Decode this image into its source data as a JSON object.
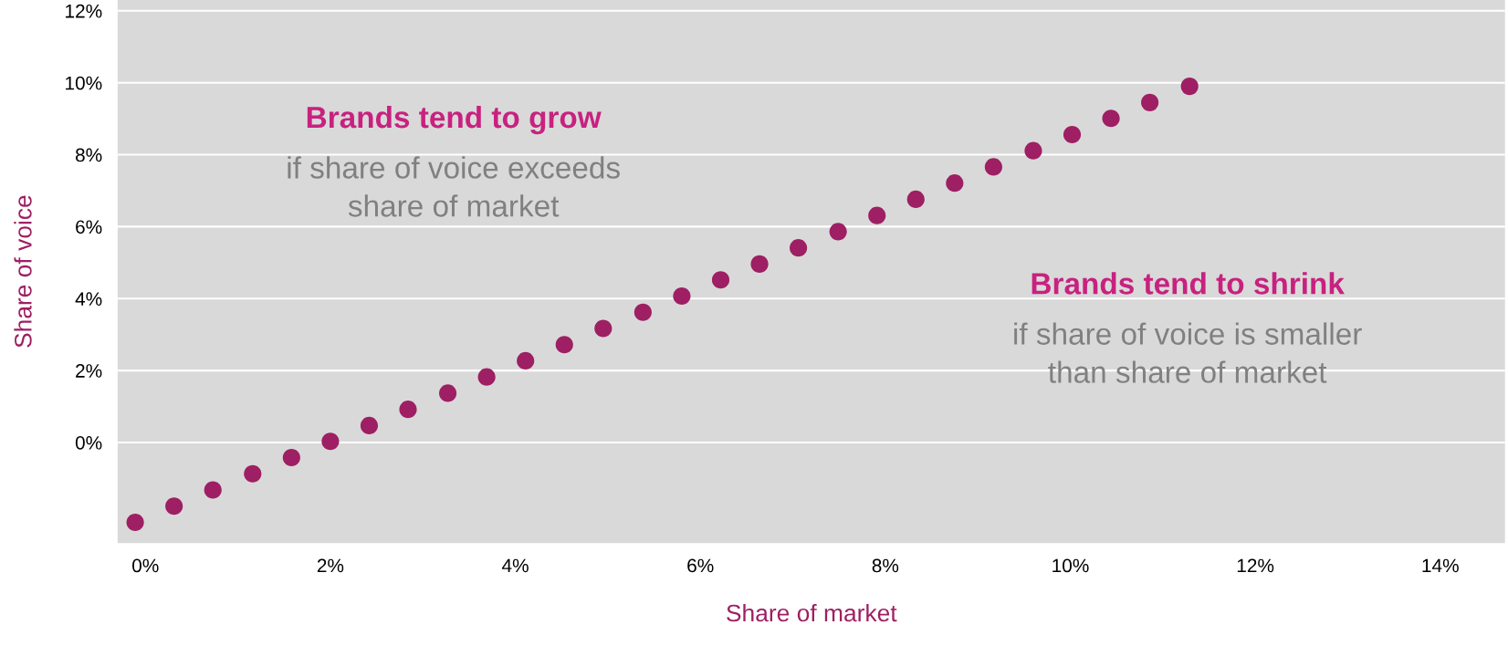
{
  "chart_data": {
    "type": "scatter",
    "xlabel": "Share of market",
    "ylabel": "Share of voice",
    "x": [
      -0.11,
      0.31,
      0.73,
      1.16,
      1.58,
      2.0,
      2.42,
      2.84,
      3.27,
      3.69,
      4.11,
      4.53,
      4.95,
      5.38,
      5.8,
      6.22,
      6.64,
      7.06,
      7.49,
      7.91,
      8.33,
      8.75,
      9.17,
      9.6,
      10.02,
      10.44,
      10.86,
      11.29
    ],
    "series": [
      {
        "color": "#9e1f63",
        "values": [
          -2.22,
          -1.77,
          -1.32,
          -0.87,
          -0.42,
          0.03,
          0.47,
          0.92,
          1.37,
          1.82,
          2.27,
          2.72,
          3.17,
          3.62,
          4.07,
          4.52,
          4.96,
          5.41,
          5.86,
          6.31,
          6.76,
          7.21,
          7.66,
          8.11,
          8.56,
          9.01,
          9.45,
          9.9
        ]
      }
    ],
    "xlim": [
      -0.3,
      14.7
    ],
    "ylim": [
      -2.8,
      12.3
    ],
    "xticks": [
      {
        "value": 0,
        "label": "0%"
      },
      {
        "value": 2,
        "label": "2%"
      },
      {
        "value": 4,
        "label": "4%"
      },
      {
        "value": 6,
        "label": "6%"
      },
      {
        "value": 8,
        "label": "8%"
      },
      {
        "value": 10,
        "label": "10%"
      },
      {
        "value": 12,
        "label": "12%"
      },
      {
        "value": 14,
        "label": "14%"
      }
    ],
    "yticks": [
      {
        "value": 0,
        "label": "0%"
      },
      {
        "value": 2,
        "label": "2%"
      },
      {
        "value": 4,
        "label": "4%"
      },
      {
        "value": 6,
        "label": "6%"
      },
      {
        "value": 8,
        "label": "8%"
      },
      {
        "value": 10,
        "label": "10%"
      },
      {
        "value": 12,
        "label": "12%"
      }
    ],
    "grid": "y",
    "marker": "circle",
    "annotations": [
      "Brands tend to grow",
      "if share of voice exceeds\nshare of market",
      "Brands tend to shrink",
      "if share of voice is smaller\nthan share of market"
    ]
  }
}
